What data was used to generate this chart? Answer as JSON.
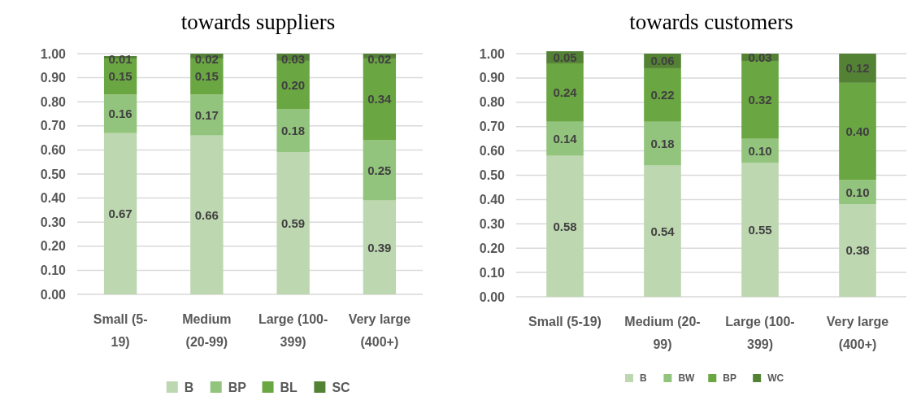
{
  "chart_data": [
    {
      "type": "bar",
      "title": "towards suppliers",
      "stacked": true,
      "categories": [
        "Small (5-\n19)",
        "Medium\n(20-99)",
        "Large (100-\n399)",
        "Very large\n(400+)"
      ],
      "series": [
        {
          "name": "B",
          "color": "#bdd7b0",
          "values": [
            0.67,
            0.66,
            0.59,
            0.39
          ],
          "value_labels": [
            "0.67",
            "0.66",
            "0.59",
            "0.39"
          ]
        },
        {
          "name": "BP",
          "color": "#93c47d",
          "values": [
            0.16,
            0.17,
            0.18,
            0.25
          ],
          "value_labels": [
            "0.16",
            "0.17",
            "0.18",
            "0.25"
          ]
        },
        {
          "name": "BL",
          "color": "#6aa642",
          "values": [
            0.15,
            0.15,
            0.2,
            0.34
          ],
          "value_labels": [
            "0.15",
            "0.15",
            "0.20",
            "0.34"
          ]
        },
        {
          "name": "SC",
          "color": "#548235",
          "values": [
            0.01,
            0.02,
            0.03,
            0.02
          ],
          "value_labels": [
            "0.01",
            "0.02",
            "0.03",
            "0.02"
          ]
        }
      ],
      "ylim": [
        0,
        1
      ],
      "yticks": [
        {
          "value": 0,
          "label": "0.00"
        },
        {
          "value": 0.1,
          "label": "0.10"
        },
        {
          "value": 0.2,
          "label": "0.20"
        },
        {
          "value": 0.3,
          "label": "0.30"
        },
        {
          "value": 0.4,
          "label": "0.40"
        },
        {
          "value": 0.5,
          "label": "0.50"
        },
        {
          "value": 0.6,
          "label": "0.60"
        },
        {
          "value": 0.7,
          "label": "0.70"
        },
        {
          "value": 0.8,
          "label": "0.80"
        },
        {
          "value": 0.9,
          "label": "0.90"
        },
        {
          "value": 1,
          "label": "1.00"
        }
      ],
      "grid": "y",
      "legend": "bottom"
    },
    {
      "type": "bar",
      "title": "towards customers",
      "stacked": true,
      "categories": [
        "Small (5-19)",
        "Medium (20-\n99)",
        "Large (100-\n399)",
        "Very large\n(400+)"
      ],
      "series": [
        {
          "name": "B",
          "color": "#bdd7b0",
          "values": [
            0.58,
            0.54,
            0.55,
            0.38
          ],
          "value_labels": [
            "0.58",
            "0.54",
            "0.55",
            "0.38"
          ]
        },
        {
          "name": "BW",
          "color": "#93c47d",
          "values": [
            0.14,
            0.18,
            0.1,
            0.1
          ],
          "value_labels": [
            "0.14",
            "0.18",
            "0.10",
            "0.10"
          ]
        },
        {
          "name": "BP",
          "color": "#6aa642",
          "values": [
            0.24,
            0.22,
            0.32,
            0.4
          ],
          "value_labels": [
            "0.24",
            "0.22",
            "0.32",
            "0.40"
          ]
        },
        {
          "name": "WC",
          "color": "#548235",
          "values": [
            0.05,
            0.06,
            0.03,
            0.12
          ],
          "value_labels": [
            "0.05",
            "0.06",
            "0.03",
            "0.12"
          ]
        }
      ],
      "ylim": [
        0,
        1.01
      ],
      "yticks": [
        {
          "value": 0,
          "label": "0.00"
        },
        {
          "value": 0.1,
          "label": "0.10"
        },
        {
          "value": 0.2,
          "label": "0.20"
        },
        {
          "value": 0.3,
          "label": "0.30"
        },
        {
          "value": 0.4,
          "label": "0.40"
        },
        {
          "value": 0.5,
          "label": "0.50"
        },
        {
          "value": 0.6,
          "label": "0.60"
        },
        {
          "value": 0.7,
          "label": "0.70"
        },
        {
          "value": 0.8,
          "label": "0.80"
        },
        {
          "value": 0.9,
          "label": "0.90"
        },
        {
          "value": 1,
          "label": "1.00"
        }
      ],
      "grid": "y",
      "legend": "bottom"
    }
  ]
}
